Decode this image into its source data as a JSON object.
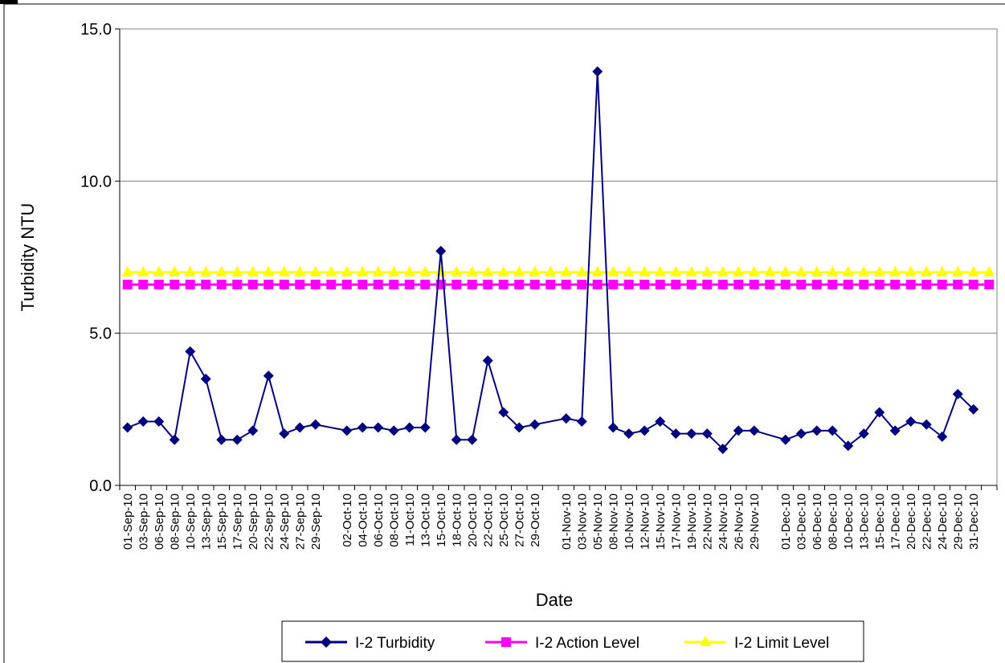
{
  "chart_data": {
    "type": "line",
    "title": "",
    "xlabel": "Date",
    "ylabel": "Turbidity NTU",
    "ylim": [
      0,
      15
    ],
    "y_ticks": [
      "0.0",
      "5.0",
      "10.0",
      "15.0"
    ],
    "grid": "horizontal",
    "legend_position": "bottom",
    "x_labels": [
      {
        "label": "01-Sep-10",
        "slot": 0
      },
      {
        "label": "03-Sep-10",
        "slot": 1
      },
      {
        "label": "06-Sep-10",
        "slot": 2
      },
      {
        "label": "08-Sep-10",
        "slot": 3
      },
      {
        "label": "10-Sep-10",
        "slot": 4
      },
      {
        "label": "13-Sep-10",
        "slot": 5
      },
      {
        "label": "15-Sep-10",
        "slot": 6
      },
      {
        "label": "17-Sep-10",
        "slot": 7
      },
      {
        "label": "20-Sep-10",
        "slot": 8
      },
      {
        "label": "22-Sep-10",
        "slot": 9
      },
      {
        "label": "24-Sep-10",
        "slot": 10
      },
      {
        "label": "27-Sep-10",
        "slot": 11
      },
      {
        "label": "29-Sep-10",
        "slot": 12
      },
      {
        "label": "02-Oct-10",
        "slot": 14
      },
      {
        "label": "04-Oct-10",
        "slot": 15
      },
      {
        "label": "06-Oct-10",
        "slot": 16
      },
      {
        "label": "08-Oct-10",
        "slot": 17
      },
      {
        "label": "11-Oct-10",
        "slot": 18
      },
      {
        "label": "13-Oct-10",
        "slot": 19
      },
      {
        "label": "15-Oct-10",
        "slot": 20
      },
      {
        "label": "18-Oct-10",
        "slot": 21
      },
      {
        "label": "20-Oct-10",
        "slot": 22
      },
      {
        "label": "22-Oct-10",
        "slot": 23
      },
      {
        "label": "25-Oct-10",
        "slot": 24
      },
      {
        "label": "27-Oct-10",
        "slot": 25
      },
      {
        "label": "29-Oct-10",
        "slot": 26
      },
      {
        "label": "01-Nov-10",
        "slot": 28
      },
      {
        "label": "03-Nov-10",
        "slot": 29
      },
      {
        "label": "05-Nov-10",
        "slot": 30
      },
      {
        "label": "08-Nov-10",
        "slot": 31
      },
      {
        "label": "10-Nov-10",
        "slot": 32
      },
      {
        "label": "12-Nov-10",
        "slot": 33
      },
      {
        "label": "15-Nov-10",
        "slot": 34
      },
      {
        "label": "17-Nov-10",
        "slot": 35
      },
      {
        "label": "19-Nov-10",
        "slot": 36
      },
      {
        "label": "22-Nov-10",
        "slot": 37
      },
      {
        "label": "24-Nov-10",
        "slot": 38
      },
      {
        "label": "26-Nov-10",
        "slot": 39
      },
      {
        "label": "29-Nov-10",
        "slot": 40
      },
      {
        "label": "01-Dec-10",
        "slot": 42
      },
      {
        "label": "03-Dec-10",
        "slot": 43
      },
      {
        "label": "06-Dec-10",
        "slot": 44
      },
      {
        "label": "08-Dec-10",
        "slot": 45
      },
      {
        "label": "10-Dec-10",
        "slot": 46
      },
      {
        "label": "13-Dec-10",
        "slot": 47
      },
      {
        "label": "15-Dec-10",
        "slot": 48
      },
      {
        "label": "17-Dec-10",
        "slot": 49
      },
      {
        "label": "20-Dec-10",
        "slot": 50
      },
      {
        "label": "22-Dec-10",
        "slot": 51
      },
      {
        "label": "24-Dec-10",
        "slot": 52
      },
      {
        "label": "29-Dec-10",
        "slot": 53
      },
      {
        "label": "31-Dec-10",
        "slot": 54
      }
    ],
    "series": [
      {
        "name": "I-2 Turbidity",
        "color": "#000080",
        "marker": "diamond",
        "points": [
          {
            "x": "01-Sep-10",
            "y": 1.9
          },
          {
            "x": "03-Sep-10",
            "y": 2.1
          },
          {
            "x": "06-Sep-10",
            "y": 2.1
          },
          {
            "x": "08-Sep-10",
            "y": 1.5
          },
          {
            "x": "10-Sep-10",
            "y": 4.4
          },
          {
            "x": "13-Sep-10",
            "y": 3.5
          },
          {
            "x": "15-Sep-10",
            "y": 1.5
          },
          {
            "x": "17-Sep-10",
            "y": 1.5
          },
          {
            "x": "20-Sep-10",
            "y": 1.8
          },
          {
            "x": "22-Sep-10",
            "y": 3.6
          },
          {
            "x": "24-Sep-10",
            "y": 1.7
          },
          {
            "x": "27-Sep-10",
            "y": 1.9
          },
          {
            "x": "29-Sep-10",
            "y": 2.0
          },
          {
            "x": "02-Oct-10",
            "y": 1.8
          },
          {
            "x": "04-Oct-10",
            "y": 1.9
          },
          {
            "x": "06-Oct-10",
            "y": 1.9
          },
          {
            "x": "08-Oct-10",
            "y": 1.8
          },
          {
            "x": "11-Oct-10",
            "y": 1.9
          },
          {
            "x": "13-Oct-10",
            "y": 1.9
          },
          {
            "x": "15-Oct-10",
            "y": 7.7
          },
          {
            "x": "18-Oct-10",
            "y": 1.5
          },
          {
            "x": "20-Oct-10",
            "y": 1.5
          },
          {
            "x": "22-Oct-10",
            "y": 4.1
          },
          {
            "x": "25-Oct-10",
            "y": 2.4
          },
          {
            "x": "27-Oct-10",
            "y": 1.9
          },
          {
            "x": "29-Oct-10",
            "y": 2.0
          },
          {
            "x": "01-Nov-10",
            "y": 2.2
          },
          {
            "x": "03-Nov-10",
            "y": 2.1
          },
          {
            "x": "05-Nov-10",
            "y": 13.6
          },
          {
            "x": "08-Nov-10",
            "y": 1.9
          },
          {
            "x": "10-Nov-10",
            "y": 1.7
          },
          {
            "x": "12-Nov-10",
            "y": 1.8
          },
          {
            "x": "15-Nov-10",
            "y": 2.1
          },
          {
            "x": "17-Nov-10",
            "y": 1.7
          },
          {
            "x": "19-Nov-10",
            "y": 1.7
          },
          {
            "x": "22-Nov-10",
            "y": 1.7
          },
          {
            "x": "24-Nov-10",
            "y": 1.2
          },
          {
            "x": "26-Nov-10",
            "y": 1.8
          },
          {
            "x": "29-Nov-10",
            "y": 1.8
          },
          {
            "x": "01-Dec-10",
            "y": 1.5
          },
          {
            "x": "03-Dec-10",
            "y": 1.7
          },
          {
            "x": "06-Dec-10",
            "y": 1.8
          },
          {
            "x": "08-Dec-10",
            "y": 1.8
          },
          {
            "x": "10-Dec-10",
            "y": 1.3
          },
          {
            "x": "13-Dec-10",
            "y": 1.7
          },
          {
            "x": "15-Dec-10",
            "y": 2.4
          },
          {
            "x": "17-Dec-10",
            "y": 1.8
          },
          {
            "x": "20-Dec-10",
            "y": 2.1
          },
          {
            "x": "22-Dec-10",
            "y": 2.0
          },
          {
            "x": "24-Dec-10",
            "y": 1.6
          },
          {
            "x": "29-Dec-10",
            "y": 3.0
          },
          {
            "x": "31-Dec-10",
            "y": 2.5
          }
        ]
      },
      {
        "name": "I-2 Action Level",
        "color": "#FF00FF",
        "marker": "square",
        "value": 6.6
      },
      {
        "name": "I-2 Limit Level",
        "color": "#FFFF00",
        "marker": "triangle",
        "value": 7.0
      }
    ]
  }
}
